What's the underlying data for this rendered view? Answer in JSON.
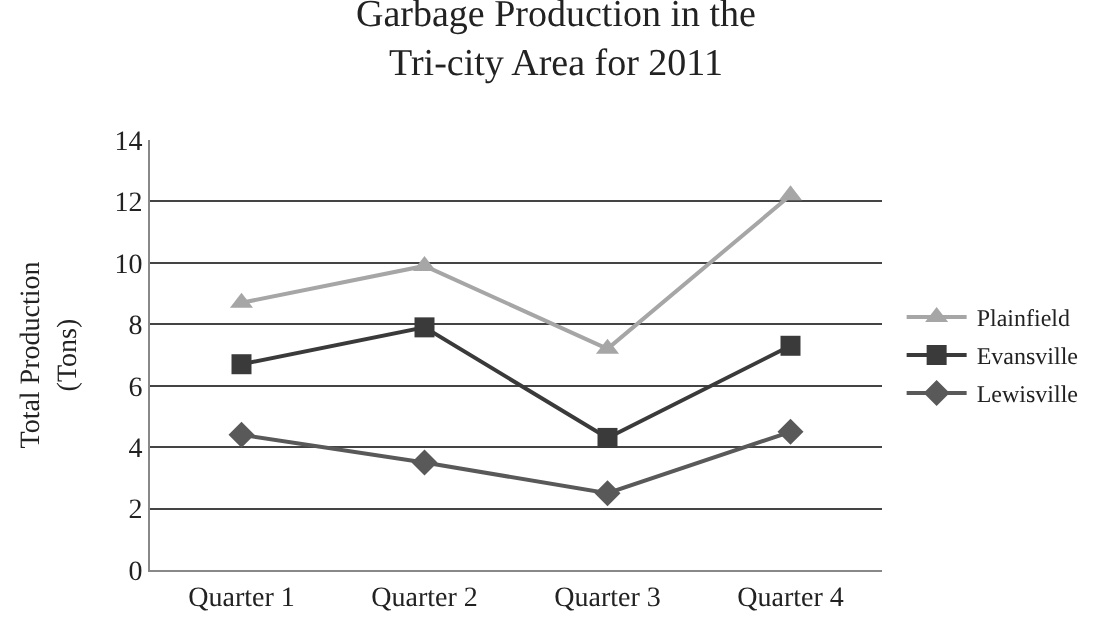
{
  "chart_data": {
    "type": "line",
    "title": "Garbage Production in the\nTri-city Area for 2011",
    "ylabel": "Total Production\n(Tons)",
    "categories": [
      "Quarter 1",
      "Quarter 2",
      "Quarter 3",
      "Quarter 4"
    ],
    "series": [
      {
        "name": "Plainfield",
        "color": "#a6a6a6",
        "marker": "triangle",
        "values": [
          8.7,
          9.9,
          7.2,
          12.2
        ]
      },
      {
        "name": "Evansville",
        "color": "#3a3a3a",
        "marker": "square",
        "values": [
          6.7,
          7.9,
          4.3,
          7.3
        ]
      },
      {
        "name": "Lewisville",
        "color": "#595959",
        "marker": "diamond",
        "values": [
          4.4,
          3.5,
          2.5,
          4.5
        ]
      }
    ],
    "ylim": [
      0,
      14
    ],
    "yticks": [
      0,
      2,
      4,
      6,
      8,
      10,
      12,
      14
    ],
    "grid": "y",
    "legend": "right"
  }
}
